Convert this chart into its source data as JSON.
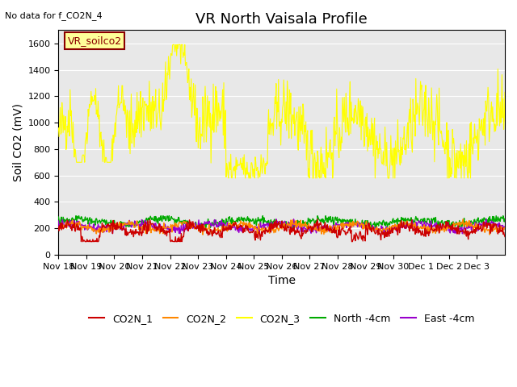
{
  "title": "VR North Vaisala Profile",
  "no_data_label": "No data for f_CO2N_4",
  "ylabel": "Soil CO2 (mV)",
  "xlabel": "Time",
  "annotation": "VR_soilco2",
  "ylim": [
    0,
    1700
  ],
  "yticks": [
    0,
    200,
    400,
    600,
    800,
    1000,
    1200,
    1400,
    1600
  ],
  "bg_color": "#e8e8e8",
  "series": {
    "CO2N_1": {
      "color": "#cc0000",
      "label": "CO2N_1"
    },
    "CO2N_2": {
      "color": "#ff8800",
      "label": "CO2N_2"
    },
    "CO2N_3": {
      "color": "#ffff00",
      "label": "CO2N_3"
    },
    "North_4cm": {
      "color": "#00aa00",
      "label": "North -4cm"
    },
    "East_4cm": {
      "color": "#9900cc",
      "label": "East -4cm"
    }
  },
  "xtick_labels": [
    "Nov 18",
    "Nov 19",
    "Nov 20",
    "Nov 21",
    "Nov 22",
    "Nov 23",
    "Nov 24",
    "Nov 25",
    "Nov 26",
    "Nov 27",
    "Nov 28",
    "Nov 29",
    "Nov 30",
    "Dec 1",
    "Dec 2",
    "Dec 3"
  ],
  "n_days": 16,
  "title_fontsize": 13,
  "label_fontsize": 10,
  "tick_fontsize": 8,
  "legend_fontsize": 9
}
